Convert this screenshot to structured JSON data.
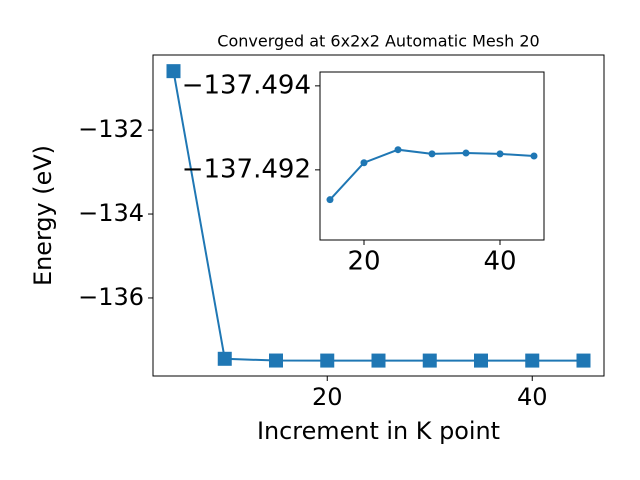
{
  "chart_data": [
    {
      "type": "line",
      "title": "Converged at 6x2x2 Automatic Mesh 20",
      "xlabel": "Increment in K point",
      "ylabel": "Energy (eV)",
      "x": [
        5,
        10,
        15,
        20,
        25,
        30,
        35,
        40,
        45
      ],
      "series": [
        {
          "name": "Energy",
          "color": "#1f77b4",
          "marker": "square",
          "values": [
            -130.595,
            -137.45,
            -137.49129,
            -137.49217,
            -137.49248,
            -137.49238,
            -137.4924,
            -137.49238,
            -137.49233
          ]
        }
      ],
      "xlim": [
        3,
        47
      ],
      "xticks": [
        20,
        40
      ],
      "ylim": [
        -137.86,
        -130.21
      ],
      "yticks": [
        {
          "value": -136,
          "label": "−136"
        },
        {
          "value": -134,
          "label": "−134"
        },
        {
          "value": -132,
          "label": "−132"
        }
      ]
    },
    {
      "type": "line",
      "x": [
        15,
        20,
        25,
        30,
        35,
        40,
        45
      ],
      "series": [
        {
          "name": "Energy",
          "color": "#1f77b4",
          "marker": "circle",
          "values": [
            -137.49129,
            -137.49217,
            -137.49248,
            -137.49238,
            -137.4924,
            -137.49238,
            -137.49233
          ]
        }
      ],
      "xlim": [
        13.53,
        46.47
      ],
      "xticks": [
        20,
        40
      ],
      "ylim": [
        -137.49033,
        -137.49433
      ],
      "yticks": [
        {
          "value": -137.494,
          "label": "−137.494"
        },
        {
          "value": -137.492,
          "label": "−137.492"
        }
      ]
    }
  ]
}
